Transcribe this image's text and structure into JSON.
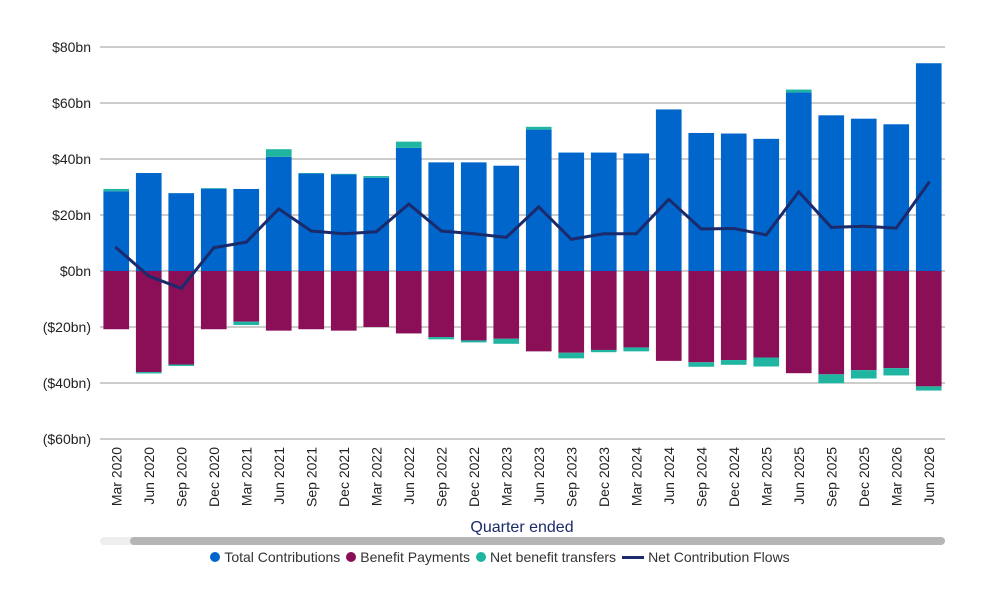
{
  "chart_data": {
    "type": "bar",
    "xlabel": "Quarter ended",
    "ylim": [
      -60,
      80
    ],
    "yticks": [
      80,
      60,
      40,
      20,
      0,
      -20,
      -40,
      -60
    ],
    "ytick_labels": [
      "$80bn",
      "$60bn",
      "$40bn",
      "$20bn",
      "$0bn",
      "($20bn)",
      "($40bn)",
      "($60bn)"
    ],
    "grid": true,
    "legend_position": "bottom",
    "categories": [
      "Mar 2020",
      "Jun 2020",
      "Sep 2020",
      "Dec 2020",
      "Mar 2021",
      "Jun 2021",
      "Sep 2021",
      "Dec 2021",
      "Mar 2022",
      "Jun 2022",
      "Sep 2022",
      "Dec 2022",
      "Mar 2023",
      "Jun 2023",
      "Sep 2023",
      "Dec 2023",
      "Mar 2024",
      "Jun 2024",
      "Sep 2024",
      "Dec 2024",
      "Mar 2025",
      "Jun 2025",
      "Sep 2025",
      "Dec 2025",
      "Mar 2026",
      "Jun 2026"
    ],
    "series": [
      {
        "name": "Total Contributions",
        "kind": "bar",
        "color": "#0066cc",
        "values": [
          28.5,
          35,
          27.8,
          29.4,
          29.3,
          40.8,
          34.8,
          34.5,
          33.3,
          44,
          38.8,
          38.8,
          37.6,
          50.5,
          42.3,
          42.3,
          42,
          57.7,
          49.3,
          49.1,
          47.2,
          63.8,
          55.6,
          54.4,
          52.4,
          74.2
        ]
      },
      {
        "name": "Benefit Payments",
        "kind": "bar",
        "color": "#8a0f57",
        "values": [
          -20.8,
          -36.1,
          -33.4,
          -20.8,
          -18.1,
          -21.3,
          -20.8,
          -21.3,
          -20,
          -22.3,
          -23.6,
          -24.8,
          -24.2,
          -28.7,
          -29.2,
          -28.2,
          -27.3,
          -32.1,
          -32.6,
          -31.8,
          -30.9,
          -36.5,
          -36.9,
          -35.4,
          -34.7,
          -41.2
        ]
      },
      {
        "name": "Net benefit transfers",
        "kind": "bar",
        "color": "#1fb5a0",
        "values": [
          0.8,
          -0.5,
          -0.5,
          0.2,
          -1.2,
          2.7,
          0.2,
          0.2,
          0.6,
          2.2,
          -0.8,
          -0.7,
          -1.8,
          1,
          -2,
          -0.8,
          -1.4,
          0,
          -1.6,
          -1.7,
          -3.2,
          1,
          -3.2,
          -3,
          -2.6,
          -1.5
        ]
      },
      {
        "name": "Net Contribution Flows",
        "kind": "line",
        "color": "#1b2a6b",
        "values": [
          8.3,
          -1.8,
          -6.2,
          8.3,
          10.3,
          22.2,
          14.3,
          13.3,
          14,
          23.9,
          14.3,
          13.3,
          12,
          22.9,
          11.3,
          13.3,
          13.3,
          25.6,
          15,
          15.2,
          12.9,
          28.3,
          15.6,
          16,
          15.3,
          31.5
        ]
      }
    ]
  }
}
